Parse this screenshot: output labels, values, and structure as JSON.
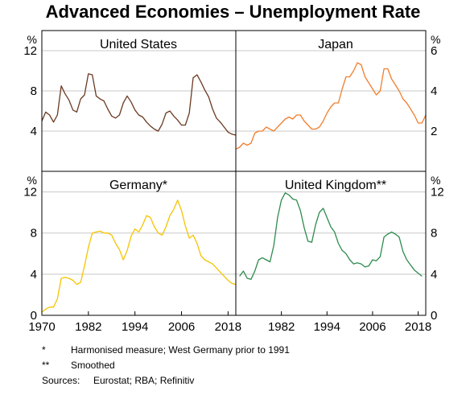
{
  "title": "Advanced Economies – Unemployment Rate",
  "chart_data": [
    {
      "type": "line",
      "title": "United States",
      "ylabel": "%",
      "ylim": [
        0,
        14
      ],
      "yticks": [
        4,
        8,
        12
      ],
      "xlim": [
        1970,
        2020
      ],
      "color": "#6b3a22",
      "x": [
        1970,
        1971,
        1972,
        1973,
        1974,
        1975,
        1976,
        1977,
        1978,
        1979,
        1980,
        1981,
        1982,
        1983,
        1984,
        1985,
        1986,
        1987,
        1988,
        1989,
        1990,
        1991,
        1992,
        1993,
        1994,
        1995,
        1996,
        1997,
        1998,
        1999,
        2000,
        2001,
        2002,
        2003,
        2004,
        2005,
        2006,
        2007,
        2008,
        2009,
        2010,
        2011,
        2012,
        2013,
        2014,
        2015,
        2016,
        2017,
        2018,
        2019,
        2020
      ],
      "y": [
        5.0,
        5.9,
        5.6,
        4.9,
        5.6,
        8.5,
        7.7,
        7.1,
        6.1,
        5.9,
        7.2,
        7.6,
        9.7,
        9.6,
        7.5,
        7.2,
        7.0,
        6.2,
        5.5,
        5.3,
        5.6,
        6.8,
        7.5,
        6.9,
        6.1,
        5.6,
        5.4,
        4.9,
        4.5,
        4.2,
        4.0,
        4.7,
        5.8,
        6.0,
        5.5,
        5.1,
        4.6,
        4.6,
        5.8,
        9.3,
        9.6,
        8.9,
        8.1,
        7.4,
        6.2,
        5.3,
        4.9,
        4.4,
        3.9,
        3.7,
        3.6
      ]
    },
    {
      "type": "line",
      "title": "Japan",
      "ylabel": "%",
      "ylim": [
        0,
        7
      ],
      "yticks": [
        2,
        4,
        6
      ],
      "xlim": [
        1970,
        2020
      ],
      "color": "#f07f2e",
      "x": [
        1970,
        1971,
        1972,
        1973,
        1974,
        1975,
        1976,
        1977,
        1978,
        1979,
        1980,
        1981,
        1982,
        1983,
        1984,
        1985,
        1986,
        1987,
        1988,
        1989,
        1990,
        1991,
        1992,
        1993,
        1994,
        1995,
        1996,
        1997,
        1998,
        1999,
        2000,
        2001,
        2002,
        2003,
        2004,
        2005,
        2006,
        2007,
        2008,
        2009,
        2010,
        2011,
        2012,
        2013,
        2014,
        2015,
        2016,
        2017,
        2018,
        2019,
        2020
      ],
      "y": [
        1.1,
        1.2,
        1.4,
        1.3,
        1.4,
        1.9,
        2.0,
        2.0,
        2.2,
        2.1,
        2.0,
        2.2,
        2.4,
        2.6,
        2.7,
        2.6,
        2.8,
        2.8,
        2.5,
        2.3,
        2.1,
        2.1,
        2.2,
        2.5,
        2.9,
        3.2,
        3.4,
        3.4,
        4.1,
        4.7,
        4.7,
        5.0,
        5.4,
        5.3,
        4.7,
        4.4,
        4.1,
        3.8,
        4.0,
        5.1,
        5.1,
        4.6,
        4.3,
        4.0,
        3.6,
        3.4,
        3.1,
        2.8,
        2.4,
        2.4,
        2.8
      ]
    },
    {
      "type": "line",
      "title": "Germany*",
      "ylabel": "%",
      "ylim": [
        0,
        14
      ],
      "yticks": [
        0,
        4,
        8,
        12
      ],
      "xlim": [
        1970,
        2020
      ],
      "color": "#f5c400",
      "x": [
        1970,
        1971,
        1972,
        1973,
        1974,
        1975,
        1976,
        1977,
        1978,
        1979,
        1980,
        1981,
        1982,
        1983,
        1984,
        1985,
        1986,
        1987,
        1988,
        1989,
        1990,
        1991,
        1992,
        1993,
        1994,
        1995,
        1996,
        1997,
        1998,
        1999,
        2000,
        2001,
        2002,
        2003,
        2004,
        2005,
        2006,
        2007,
        2008,
        2009,
        2010,
        2011,
        2012,
        2013,
        2014,
        2015,
        2016,
        2017,
        2018,
        2019,
        2020
      ],
      "y": [
        0.3,
        0.6,
        0.8,
        0.8,
        1.6,
        3.6,
        3.7,
        3.6,
        3.4,
        3.0,
        3.2,
        4.8,
        6.6,
        8.0,
        8.1,
        8.2,
        8.0,
        8.0,
        7.8,
        7.0,
        6.4,
        5.4,
        6.3,
        7.7,
        8.4,
        8.1,
        8.8,
        9.7,
        9.5,
        8.6,
        8.0,
        7.8,
        8.6,
        9.7,
        10.3,
        11.2,
        10.2,
        8.7,
        7.5,
        7.8,
        7.0,
        5.8,
        5.4,
        5.2,
        5.0,
        4.6,
        4.2,
        3.8,
        3.4,
        3.1,
        3.0
      ]
    },
    {
      "type": "line",
      "title": "United Kingdom**",
      "ylabel": "%",
      "ylim": [
        0,
        14
      ],
      "yticks": [
        0,
        4,
        8,
        12
      ],
      "xlim": [
        1970,
        2020
      ],
      "color": "#2e8b4f",
      "x": [
        1971,
        1972,
        1973,
        1974,
        1975,
        1976,
        1977,
        1978,
        1979,
        1980,
        1981,
        1982,
        1983,
        1984,
        1985,
        1986,
        1987,
        1988,
        1989,
        1990,
        1991,
        1992,
        1993,
        1994,
        1995,
        1996,
        1997,
        1998,
        1999,
        2000,
        2001,
        2002,
        2003,
        2004,
        2005,
        2006,
        2007,
        2008,
        2009,
        2010,
        2011,
        2012,
        2013,
        2014,
        2015,
        2016,
        2017,
        2018,
        2019
      ],
      "y": [
        3.8,
        4.3,
        3.6,
        3.5,
        4.3,
        5.4,
        5.6,
        5.4,
        5.2,
        6.8,
        9.5,
        11.2,
        11.9,
        11.7,
        11.3,
        11.2,
        10.2,
        8.5,
        7.2,
        7.1,
        8.8,
        10.0,
        10.4,
        9.5,
        8.6,
        8.1,
        7.0,
        6.3,
        6.0,
        5.4,
        5.0,
        5.1,
        5.0,
        4.7,
        4.8,
        5.4,
        5.3,
        5.7,
        7.6,
        7.9,
        8.1,
        7.9,
        7.6,
        6.2,
        5.4,
        4.9,
        4.4,
        4.1,
        3.8
      ]
    }
  ],
  "x_tick_labels_left": [
    "1970",
    "1982",
    "1994",
    "2006",
    "2018"
  ],
  "x_tick_labels_right": [
    "1982",
    "1994",
    "2006",
    "2018"
  ],
  "x_tick_values_left": [
    1970,
    1982,
    1994,
    2006,
    2018
  ],
  "x_tick_values_right": [
    1982,
    1994,
    2006,
    2018
  ],
  "footnotes": [
    {
      "mark": "*",
      "text": "Harmonised measure; West Germany prior to 1991"
    },
    {
      "mark": "**",
      "text": "Smoothed"
    }
  ],
  "sources": {
    "label": "Sources:",
    "text": "Eurostat; RBA; Refinitiv"
  }
}
